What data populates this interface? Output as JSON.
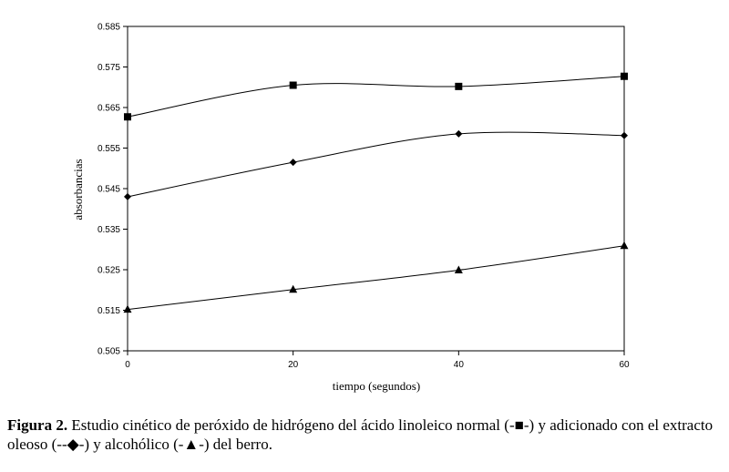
{
  "chart_data": {
    "type": "line",
    "xlabel": "tiempo (segundos)",
    "ylabel": "absorbancias",
    "x": [
      0,
      20,
      40,
      60
    ],
    "xlim": [
      0,
      60
    ],
    "ylim": [
      0.505,
      0.585
    ],
    "x_ticks": [
      "0",
      "20",
      "40",
      "60"
    ],
    "y_ticks": [
      "0.505",
      "0.515",
      "0.525",
      "0.535",
      "0.545",
      "0.555",
      "0.565",
      "0.575",
      "0.585"
    ],
    "grid": false,
    "series": [
      {
        "marker": "square",
        "values": [
          0.5627,
          0.5705,
          0.5702,
          0.5727
        ]
      },
      {
        "marker": "diamond",
        "values": [
          0.543,
          0.5515,
          0.5585,
          0.5581
        ]
      },
      {
        "marker": "triangle",
        "values": [
          0.5152,
          0.5201,
          0.5249,
          0.5309
        ]
      }
    ]
  },
  "caption": {
    "label": "Figura 2.",
    "part1": " Estudio cinético de peróxido de hidrógeno del ácido linoleico normal (-",
    "symbol1": "■",
    "part2": "-) y adicionado con el extracto oleoso (--",
    "symbol2": "◆",
    "part3": "-) y alcohólico (-",
    "symbol3": "▲",
    "part4": "-) del berro."
  }
}
